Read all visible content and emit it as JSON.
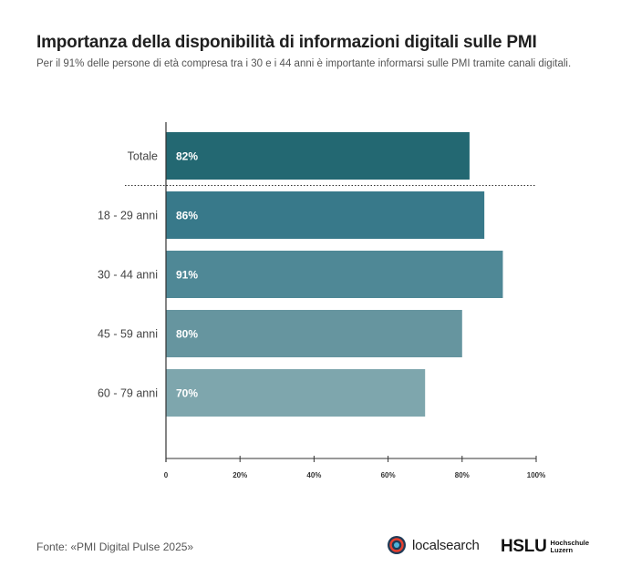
{
  "title": "Importanza della disponibilità di informazioni digitali sulle PMI",
  "subtitle": "Per il 91% delle persone di età compresa tra i 30 e i 44 anni è importante informarsi sulle PMI tramite canali digitali.",
  "chart_data": {
    "type": "bar",
    "orientation": "horizontal",
    "categories": [
      "Totale",
      "18 - 29 anni",
      "30 - 44 anni",
      "45 - 59 anni",
      "60 - 79 anni"
    ],
    "values": [
      82,
      86,
      91,
      80,
      70
    ],
    "value_labels": [
      "82%",
      "86%",
      "91%",
      "80%",
      "70%"
    ],
    "xlim": [
      0,
      100
    ],
    "x_ticks": [
      "0",
      "20%",
      "40%",
      "60%",
      "80%",
      "100%"
    ],
    "colors": [
      "#236872",
      "#38798a",
      "#4f8896",
      "#66959f",
      "#7ea6ad"
    ],
    "separator_after_category": "Totale",
    "grid": false
  },
  "footer": {
    "source": "Fonte: «PMI Digital Pulse 2025»",
    "logo_localsearch": "localsearch",
    "logo_hslu_main": "HSLU",
    "logo_hslu_line1": "Hochschule",
    "logo_hslu_line2": "Luzern"
  }
}
